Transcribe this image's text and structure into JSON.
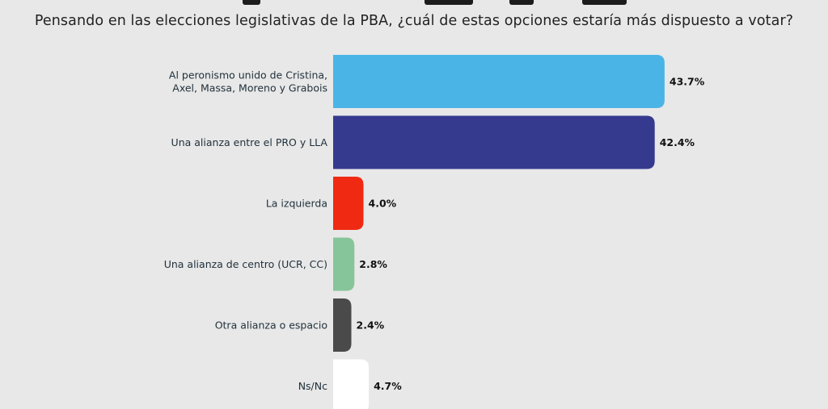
{
  "chart_data": {
    "type": "bar",
    "orientation": "horizontal",
    "subtitle": "Pensando en las elecciones legislativas de la PBA, ¿cuál de estas opciones estaría más dispuesto a votar?",
    "categories": [
      [
        "Al peronismo unido de Cristina,",
        "Axel, Massa, Moreno y Grabois"
      ],
      [
        "Una alianza entre el PRO y LLA"
      ],
      [
        "La izquierda"
      ],
      [
        "Una alianza de centro (UCR, CC)"
      ],
      [
        "Otra alianza o espacio"
      ],
      [
        "Ns/Nc"
      ]
    ],
    "values": [
      43.7,
      42.4,
      4.0,
      2.8,
      2.4,
      4.7
    ],
    "value_labels": [
      "43.7%",
      "42.4%",
      "4.0%",
      "2.8%",
      "2.4%",
      "4.7%"
    ],
    "colors": [
      "#4bb4e6",
      "#363a8f",
      "#f02a12",
      "#86c59a",
      "#4a4a4a",
      "#ffffff"
    ],
    "background": "#e8e8e8",
    "grid": false,
    "legend": "none"
  }
}
